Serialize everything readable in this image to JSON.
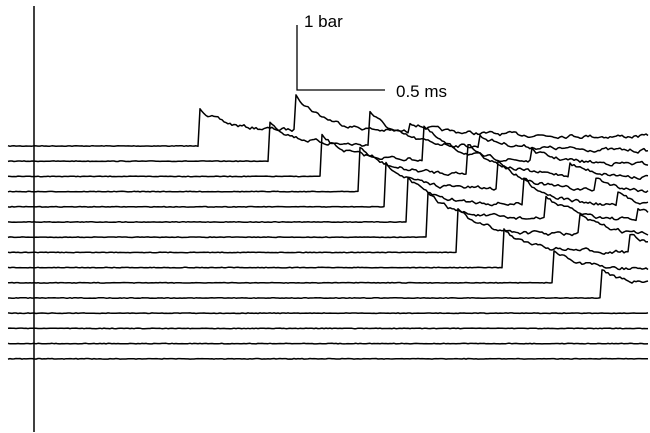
{
  "chart_data": {
    "type": "line",
    "title": "",
    "xlabel": "",
    "ylabel": "",
    "grid": false,
    "legend": "none",
    "stacked_offset": true,
    "scale_bar": {
      "vertical": {
        "value": 1,
        "unit": "bar",
        "label": "1 bar"
      },
      "horizontal": {
        "value": 0.5,
        "unit": "ms",
        "label": "0.5 ms"
      }
    },
    "series": [
      {
        "onset_ms": 0.94,
        "peak_bar": 0.6,
        "major_bar": 1.45
      },
      {
        "onset_ms": 1.34,
        "peak_bar": 0.62,
        "major_bar": 1.35
      },
      {
        "onset_ms": 1.63,
        "peak_bar": 0.65,
        "major_bar": 1.3
      },
      {
        "onset_ms": 1.85,
        "peak_bar": 0.7,
        "major_bar": 1.25
      },
      {
        "onset_ms": 2.0,
        "peak_bar": 0.7,
        "major_bar": 1.15
      },
      {
        "onset_ms": 2.12,
        "peak_bar": 0.7,
        "major_bar": 1.05
      },
      {
        "onset_ms": 2.23,
        "peak_bar": 0.72,
        "major_bar": 0.9
      },
      {
        "onset_ms": 2.4,
        "peak_bar": 0.7,
        "major_bar": 0.8
      },
      {
        "onset_ms": 2.66,
        "peak_bar": 0.62,
        "major_bar": 0.7
      },
      {
        "onset_ms": 2.95,
        "peak_bar": 0.52,
        "major_bar": 0.62
      },
      {
        "onset_ms": 3.22,
        "peak_bar": 0.46,
        "major_bar": 0.58
      },
      {
        "onset_ms": 3.52,
        "peak_bar": 0.36,
        "major_bar": 0.52
      },
      {
        "onset_ms": 3.88,
        "peak_bar": 0.3,
        "major_bar": 0.48
      },
      {
        "onset_ms": 4.24,
        "peak_bar": 0.25,
        "major_bar": 0.42
      },
      {
        "onset_ms": 4.63,
        "peak_bar": 0.2,
        "major_bar": 0.36
      }
    ]
  }
}
